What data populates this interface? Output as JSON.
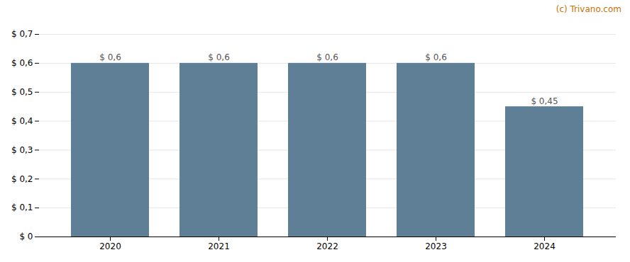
{
  "chart_data": {
    "type": "bar",
    "categories": [
      "2020",
      "2021",
      "2022",
      "2023",
      "2024"
    ],
    "values": [
      0.6,
      0.6,
      0.6,
      0.6,
      0.45
    ],
    "value_labels": [
      "$ 0,6",
      "$ 0,6",
      "$ 0,6",
      "$ 0,6",
      "$ 0,45"
    ],
    "data_labels": true,
    "color": "#5f7f96",
    "ylim": [
      0,
      0.7
    ],
    "yticks": [
      {
        "value": 0.0,
        "label": "$ 0"
      },
      {
        "value": 0.1,
        "label": "$ 0,1"
      },
      {
        "value": 0.2,
        "label": "$ 0,2"
      },
      {
        "value": 0.3,
        "label": "$ 0,3"
      },
      {
        "value": 0.4,
        "label": "$ 0,4"
      },
      {
        "value": 0.5,
        "label": "$ 0,5"
      },
      {
        "value": 0.6,
        "label": "$ 0,6"
      },
      {
        "value": 0.7,
        "label": "$ 0,7"
      }
    ],
    "grid": true,
    "annotations": [
      "(c) Trivano.com"
    ]
  }
}
